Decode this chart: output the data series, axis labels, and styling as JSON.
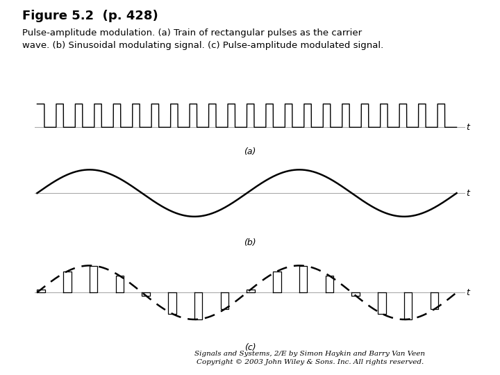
{
  "title": "Figure 5.2  (p. 428)",
  "subtitle": "Pulse-amplitude modulation. (a) Train of rectangular pulses as the carrier\nwave. (b) Sinusoidal modulating signal. (c) Pulse-amplitude modulated signal.",
  "footnote_line1": "Signals and Systems, 2/E by Simon Haykin and Barry Van Veen",
  "footnote_line2": "Copyright © 2003 John Wiley & Sons. Inc. All rights reserved.",
  "bg_color": "#ffffff",
  "pulse_duty": 0.38,
  "num_pulses": 22,
  "num_pam_pulses": 16,
  "sine_freq_cycles": 2.0,
  "label_a": "(a)",
  "label_b": "(b)",
  "label_c": "(c)",
  "t_label": "t",
  "axis_color": "#aaaaaa",
  "line_color": "#000000",
  "dash_color": "#000000"
}
